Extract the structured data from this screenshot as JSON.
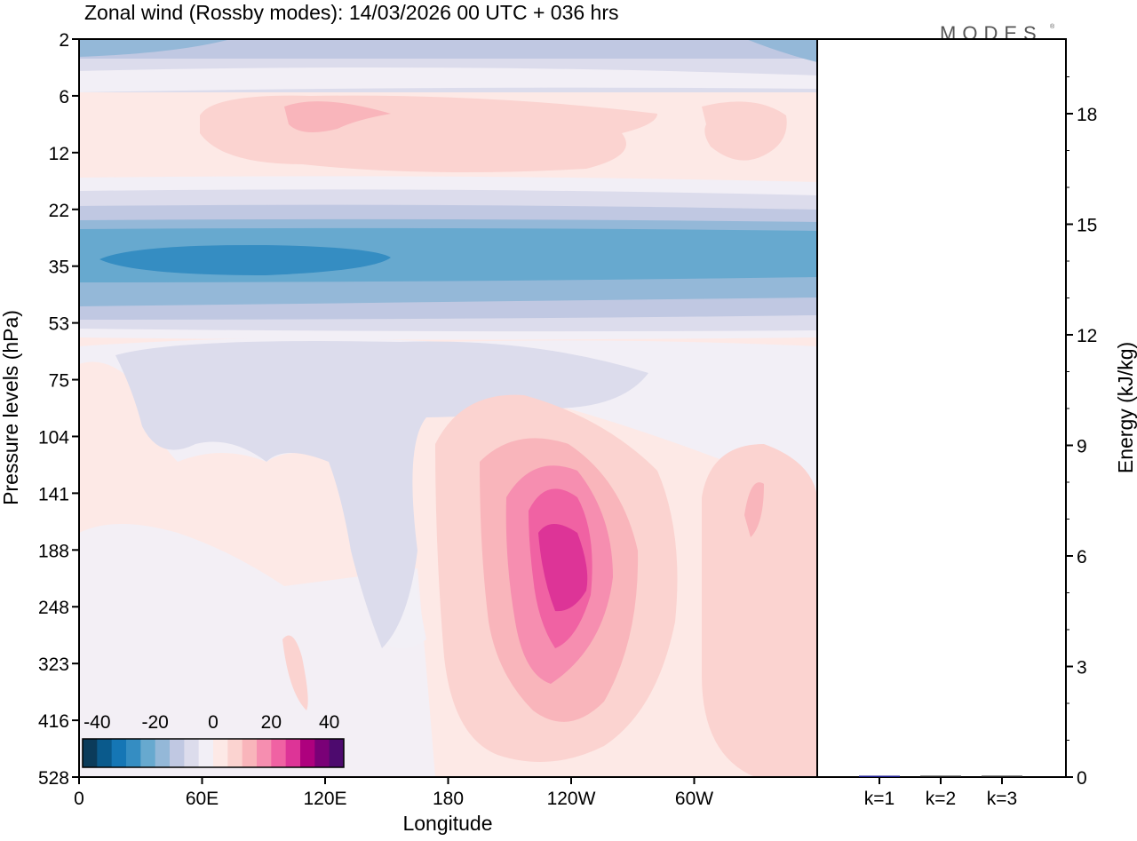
{
  "chart_data": [
    {
      "type": "heatmap",
      "title": "Zonal wind (Rossby modes):  14/03/2026  00 UTC  + 036 hrs",
      "xlabel": "Longitude",
      "ylabel": "Pressure levels (hPa)",
      "x_ticks": [
        "0",
        "60E",
        "120E",
        "180",
        "120W",
        "60W"
      ],
      "y_ticks": [
        "2",
        "6",
        "12",
        "22",
        "35",
        "53",
        "75",
        "104",
        "141",
        "188",
        "248",
        "323",
        "416",
        "528"
      ],
      "colorbar": {
        "tick_labels": [
          "-40",
          "-20",
          "0",
          "20",
          "40"
        ],
        "levels": [
          -45,
          -40,
          -35,
          -30,
          -25,
          -20,
          -15,
          -10,
          -5,
          0,
          5,
          10,
          15,
          20,
          25,
          30,
          35,
          40,
          45
        ],
        "colors": [
          "#0b3b5a",
          "#0a5a8c",
          "#1576b5",
          "#358dc2",
          "#67a9cf",
          "#94b8d8",
          "#c0c8e2",
          "#dcdcec",
          "#f2eff6",
          "#fde9e6",
          "#fbd3d0",
          "#f9b5bb",
          "#f68eb0",
          "#f062a3",
          "#dd3497",
          "#ae017e",
          "#7a0177",
          "#4d0a6e"
        ]
      },
      "features": "Easterly band near 35 hPa (~-25 m/s); westerly maximum ~25 m/s near 120W at 188 hPa"
    },
    {
      "type": "bar",
      "categories": [
        "k=1",
        "k=2",
        "k=3"
      ],
      "values": [
        0.03,
        0.01,
        0.01
      ],
      "ylabel": "Energy (kJ/kg)",
      "y_ticks": [
        "0",
        "3",
        "6",
        "9",
        "12",
        "15",
        "18"
      ],
      "ylim": [
        0,
        20
      ],
      "bar_colors": [
        "#1a1a8c",
        "#222222",
        "#222222"
      ]
    }
  ],
  "logo": "MODES"
}
